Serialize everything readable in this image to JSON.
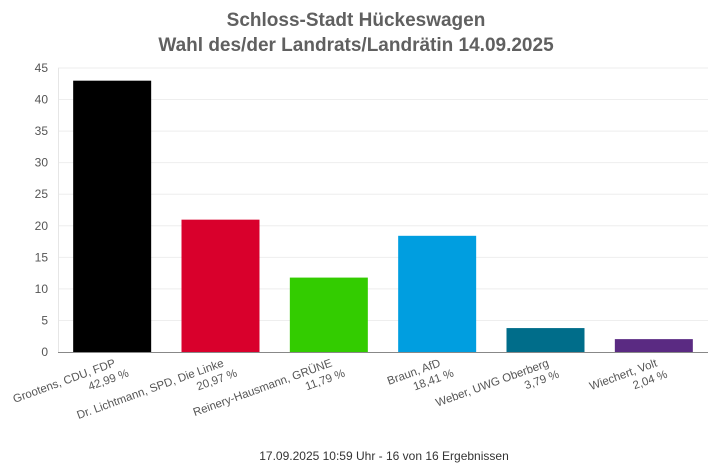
{
  "chart_data": {
    "type": "bar",
    "title": "Schloss-Stadt Hückeswagen",
    "subtitle": "Wahl des/der Landrats/Landrätin 14.09.2025",
    "xlabel": "",
    "ylabel": "",
    "ylim": [
      0,
      45
    ],
    "yticks": [
      "0",
      "5",
      "10",
      "15",
      "20",
      "25",
      "30",
      "35",
      "40",
      "45"
    ],
    "grid": true,
    "legend": "none",
    "categories": [
      "Grootens, CDU, FDP",
      "Dr. Lichtmann, SPD, Die Linke",
      "Reinery-Hausmann, GRÜNE",
      "Braun, AfD",
      "Weber, UWG Oberberg",
      "Wiechert, Volt"
    ],
    "percent_labels": [
      "42,99 %",
      "20,97 %",
      "11,79 %",
      "18,41 %",
      "3,79 %",
      "2,04 %"
    ],
    "values": [
      42.99,
      20.97,
      11.79,
      18.41,
      3.79,
      2.04
    ],
    "colors": [
      "#000000",
      "#d9002c",
      "#33cc00",
      "#009ee0",
      "#006d8a",
      "#5a2a82"
    ],
    "footer": "17.09.2025 10:59 Uhr - 16 von 16 Ergebnissen"
  }
}
